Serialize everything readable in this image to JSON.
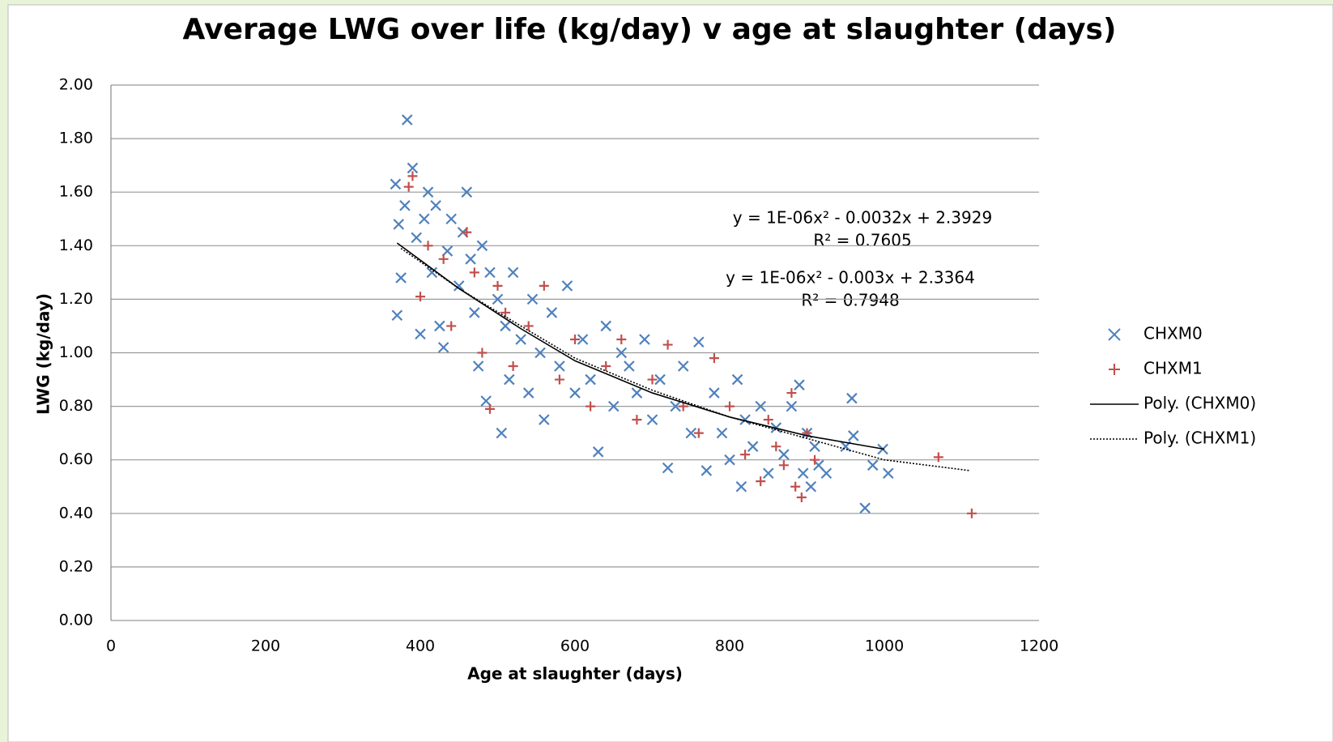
{
  "chart_data": {
    "type": "scatter",
    "title": "Average LWG over life (kg/day) v age at slaughter (days)",
    "x_label": "Age at slaughter (days)",
    "y_label": "LWG (kg/day)",
    "xlim": [
      0,
      1200
    ],
    "xticks": [
      0,
      200,
      400,
      600,
      800,
      1000,
      1200
    ],
    "ylim": [
      0,
      2
    ],
    "yticks": [
      {
        "value": 0,
        "label": "0.00"
      },
      {
        "value": 0.2,
        "label": "0.20"
      },
      {
        "value": 0.4,
        "label": "0.40"
      },
      {
        "value": 0.6,
        "label": "0.60"
      },
      {
        "value": 0.8,
        "label": "0.80"
      },
      {
        "value": 1,
        "label": "1.00"
      },
      {
        "value": 1.2,
        "label": "1.20"
      },
      {
        "value": 1.4,
        "label": "1.40"
      },
      {
        "value": 1.6,
        "label": "1.60"
      },
      {
        "value": 1.8,
        "label": "1.80"
      },
      {
        "value": 2,
        "label": "2.00"
      }
    ],
    "grid": true,
    "legend": "right",
    "annotations": [
      "y = 1E-06x² - 0.0032x + 2.3929",
      "R² = 0.7605",
      "y = 1E-06x² - 0.003x + 2.3364",
      "R² = 0.7948"
    ],
    "series": [
      {
        "name": "CHXM0",
        "color": "#4f81bd",
        "marker": "x",
        "x": [
          368,
          383,
          390,
          370,
          375,
          372,
          380,
          395,
          400,
          405,
          410,
          415,
          420,
          425,
          430,
          435,
          440,
          450,
          455,
          460,
          465,
          470,
          475,
          480,
          485,
          490,
          500,
          505,
          510,
          515,
          520,
          530,
          540,
          545,
          555,
          560,
          570,
          580,
          590,
          600,
          610,
          620,
          630,
          640,
          650,
          660,
          670,
          680,
          690,
          700,
          710,
          720,
          730,
          740,
          750,
          760,
          770,
          780,
          790,
          800,
          810,
          815,
          820,
          830,
          840,
          850,
          860,
          870,
          880,
          890,
          895,
          900,
          905,
          910,
          915,
          925,
          950,
          958,
          960,
          975,
          985,
          998,
          1005
        ],
        "values": [
          1.63,
          1.87,
          1.69,
          1.14,
          1.28,
          1.48,
          1.55,
          1.43,
          1.07,
          1.5,
          1.6,
          1.3,
          1.55,
          1.1,
          1.02,
          1.38,
          1.5,
          1.25,
          1.45,
          1.6,
          1.35,
          1.15,
          0.95,
          1.4,
          0.82,
          1.3,
          1.2,
          0.7,
          1.1,
          0.9,
          1.3,
          1.05,
          0.85,
          1.2,
          1,
          0.75,
          1.15,
          0.95,
          1.25,
          0.85,
          1.05,
          0.9,
          0.63,
          1.1,
          0.8,
          1,
          0.95,
          0.85,
          1.05,
          0.75,
          0.9,
          0.57,
          0.8,
          0.95,
          0.7,
          1.04,
          0.56,
          0.85,
          0.7,
          0.6,
          0.9,
          0.5,
          0.75,
          0.65,
          0.8,
          0.55,
          0.72,
          0.62,
          0.8,
          0.88,
          0.55,
          0.7,
          0.5,
          0.65,
          0.58,
          0.55,
          0.65,
          0.83,
          0.69,
          0.42,
          0.58,
          0.64,
          0.55
        ]
      },
      {
        "name": "CHXM1",
        "color": "#c0504d",
        "marker": "plus",
        "x": [
          385,
          390,
          400,
          410,
          430,
          440,
          460,
          470,
          480,
          490,
          500,
          510,
          520,
          540,
          560,
          580,
          600,
          620,
          640,
          660,
          680,
          700,
          720,
          740,
          760,
          780,
          800,
          820,
          840,
          850,
          860,
          870,
          880,
          885,
          893,
          900,
          910,
          1070,
          1113
        ],
        "values": [
          1.62,
          1.66,
          1.21,
          1.4,
          1.35,
          1.1,
          1.45,
          1.3,
          1,
          0.79,
          1.25,
          1.15,
          0.95,
          1.1,
          1.25,
          0.9,
          1.05,
          0.8,
          0.95,
          1.05,
          0.75,
          0.9,
          1.03,
          0.8,
          0.7,
          0.98,
          0.8,
          0.62,
          0.52,
          0.75,
          0.65,
          0.58,
          0.85,
          0.5,
          0.46,
          0.7,
          0.6,
          0.61,
          0.4
        ]
      },
      {
        "name": "Poly. (CHXM0)",
        "color": "#000000",
        "marker": "line-solid",
        "x": [
          370,
          450,
          530,
          600,
          700,
          800,
          900,
          1000
        ],
        "values": [
          1.41,
          1.24,
          1.09,
          0.97,
          0.85,
          0.76,
          0.69,
          0.64
        ]
      },
      {
        "name": "Poly. (CHXM1)",
        "color": "#000000",
        "marker": "line-dotted",
        "x": [
          375,
          450,
          530,
          600,
          700,
          800,
          900,
          1000,
          1110
        ],
        "values": [
          1.39,
          1.24,
          1.1,
          0.98,
          0.86,
          0.76,
          0.68,
          0.6,
          0.56
        ]
      }
    ]
  }
}
